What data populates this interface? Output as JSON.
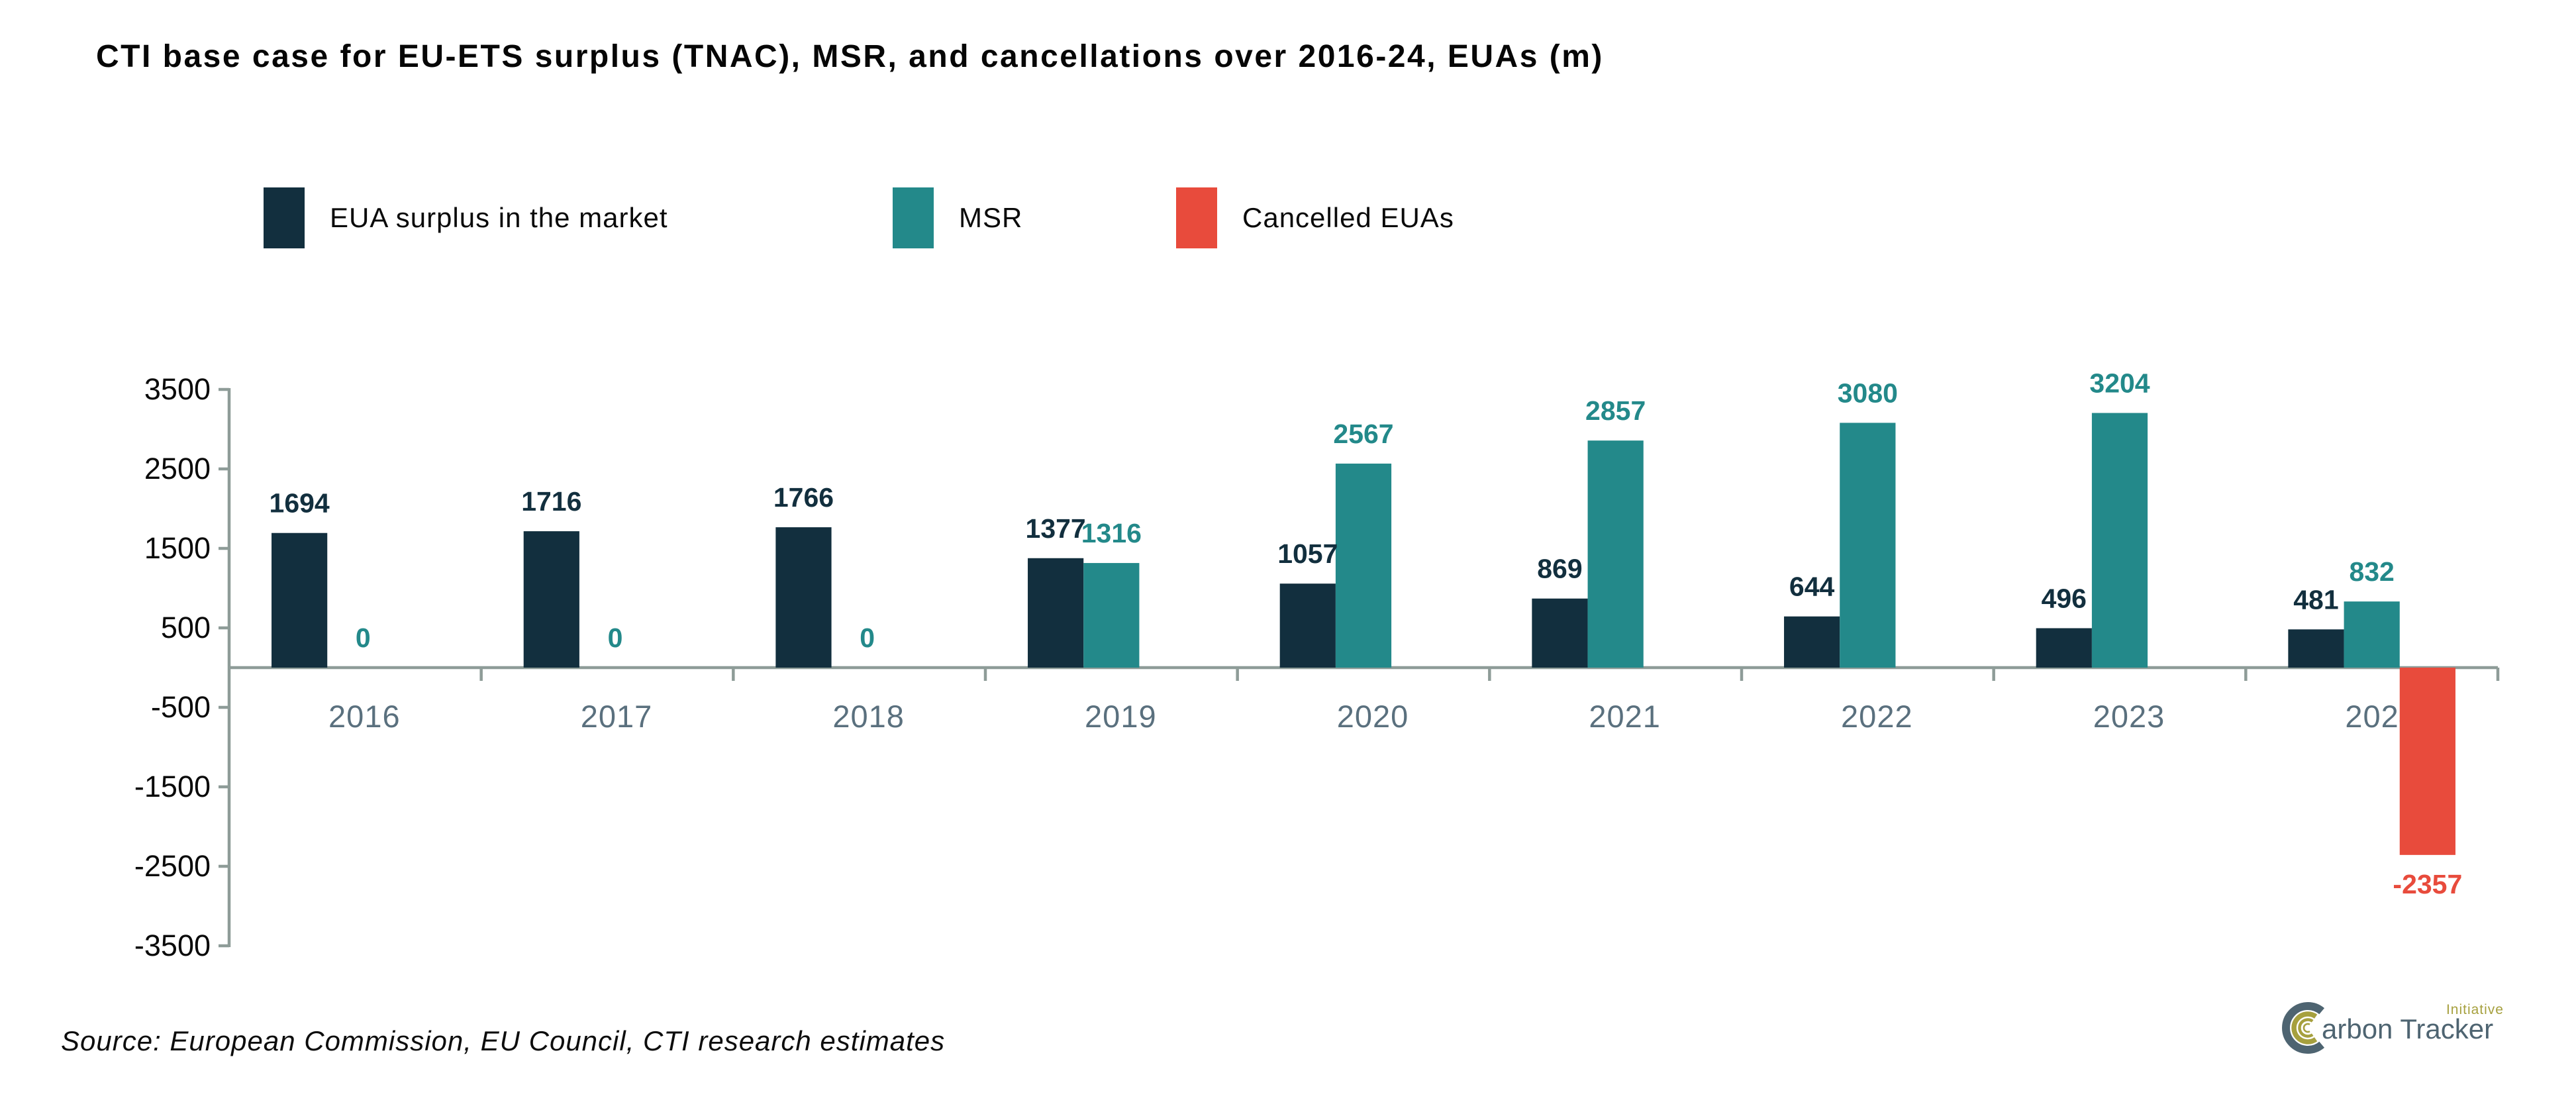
{
  "title": "CTI base case for EU-ETS surplus (TNAC), MSR, and cancellations over 2016-24, EUAs (m)",
  "source_note": "Source: European Commission, EU Council, CTI research estimates",
  "logo": {
    "full_name": "Carbon Tracker Initiative",
    "wordmark_rest": "arbon Tracker",
    "tagline": "Initiative",
    "slate_color": "#4E6471",
    "olive_color": "#A6A03E"
  },
  "chart_data": {
    "type": "bar",
    "title": "CTI base case for EU-ETS surplus (TNAC), MSR, and cancellations over 2016-24, EUAs (m)",
    "categories": [
      "2016",
      "2017",
      "2018",
      "2019",
      "2020",
      "2021",
      "2022",
      "2023",
      "2024"
    ],
    "series": [
      {
        "key": "eua-surplus",
        "name": "EUA surplus in the market",
        "color": "#122F3E",
        "values": [
          1694,
          1716,
          1766,
          1377,
          1057,
          869,
          644,
          496,
          481
        ]
      },
      {
        "key": "msr",
        "name": "MSR",
        "color": "#23898A",
        "values": [
          0,
          0,
          0,
          1316,
          2567,
          2857,
          3080,
          3204,
          832
        ]
      },
      {
        "key": "cancelled",
        "name": "Cancelled EUAs",
        "color": "#E84B3C",
        "values": [
          null,
          null,
          null,
          null,
          null,
          null,
          null,
          null,
          -2357
        ]
      }
    ],
    "ylim": [
      -3500,
      3500
    ],
    "yticks": [
      3500,
      2500,
      1500,
      500,
      -500,
      -1500,
      -2500,
      -3500
    ],
    "grid": false,
    "legend_position": "top",
    "value_labels": true,
    "colors": {
      "axis": "#8E9C98",
      "tick_labels": "#0A0A0A",
      "category_labels": "#5A707E"
    }
  }
}
